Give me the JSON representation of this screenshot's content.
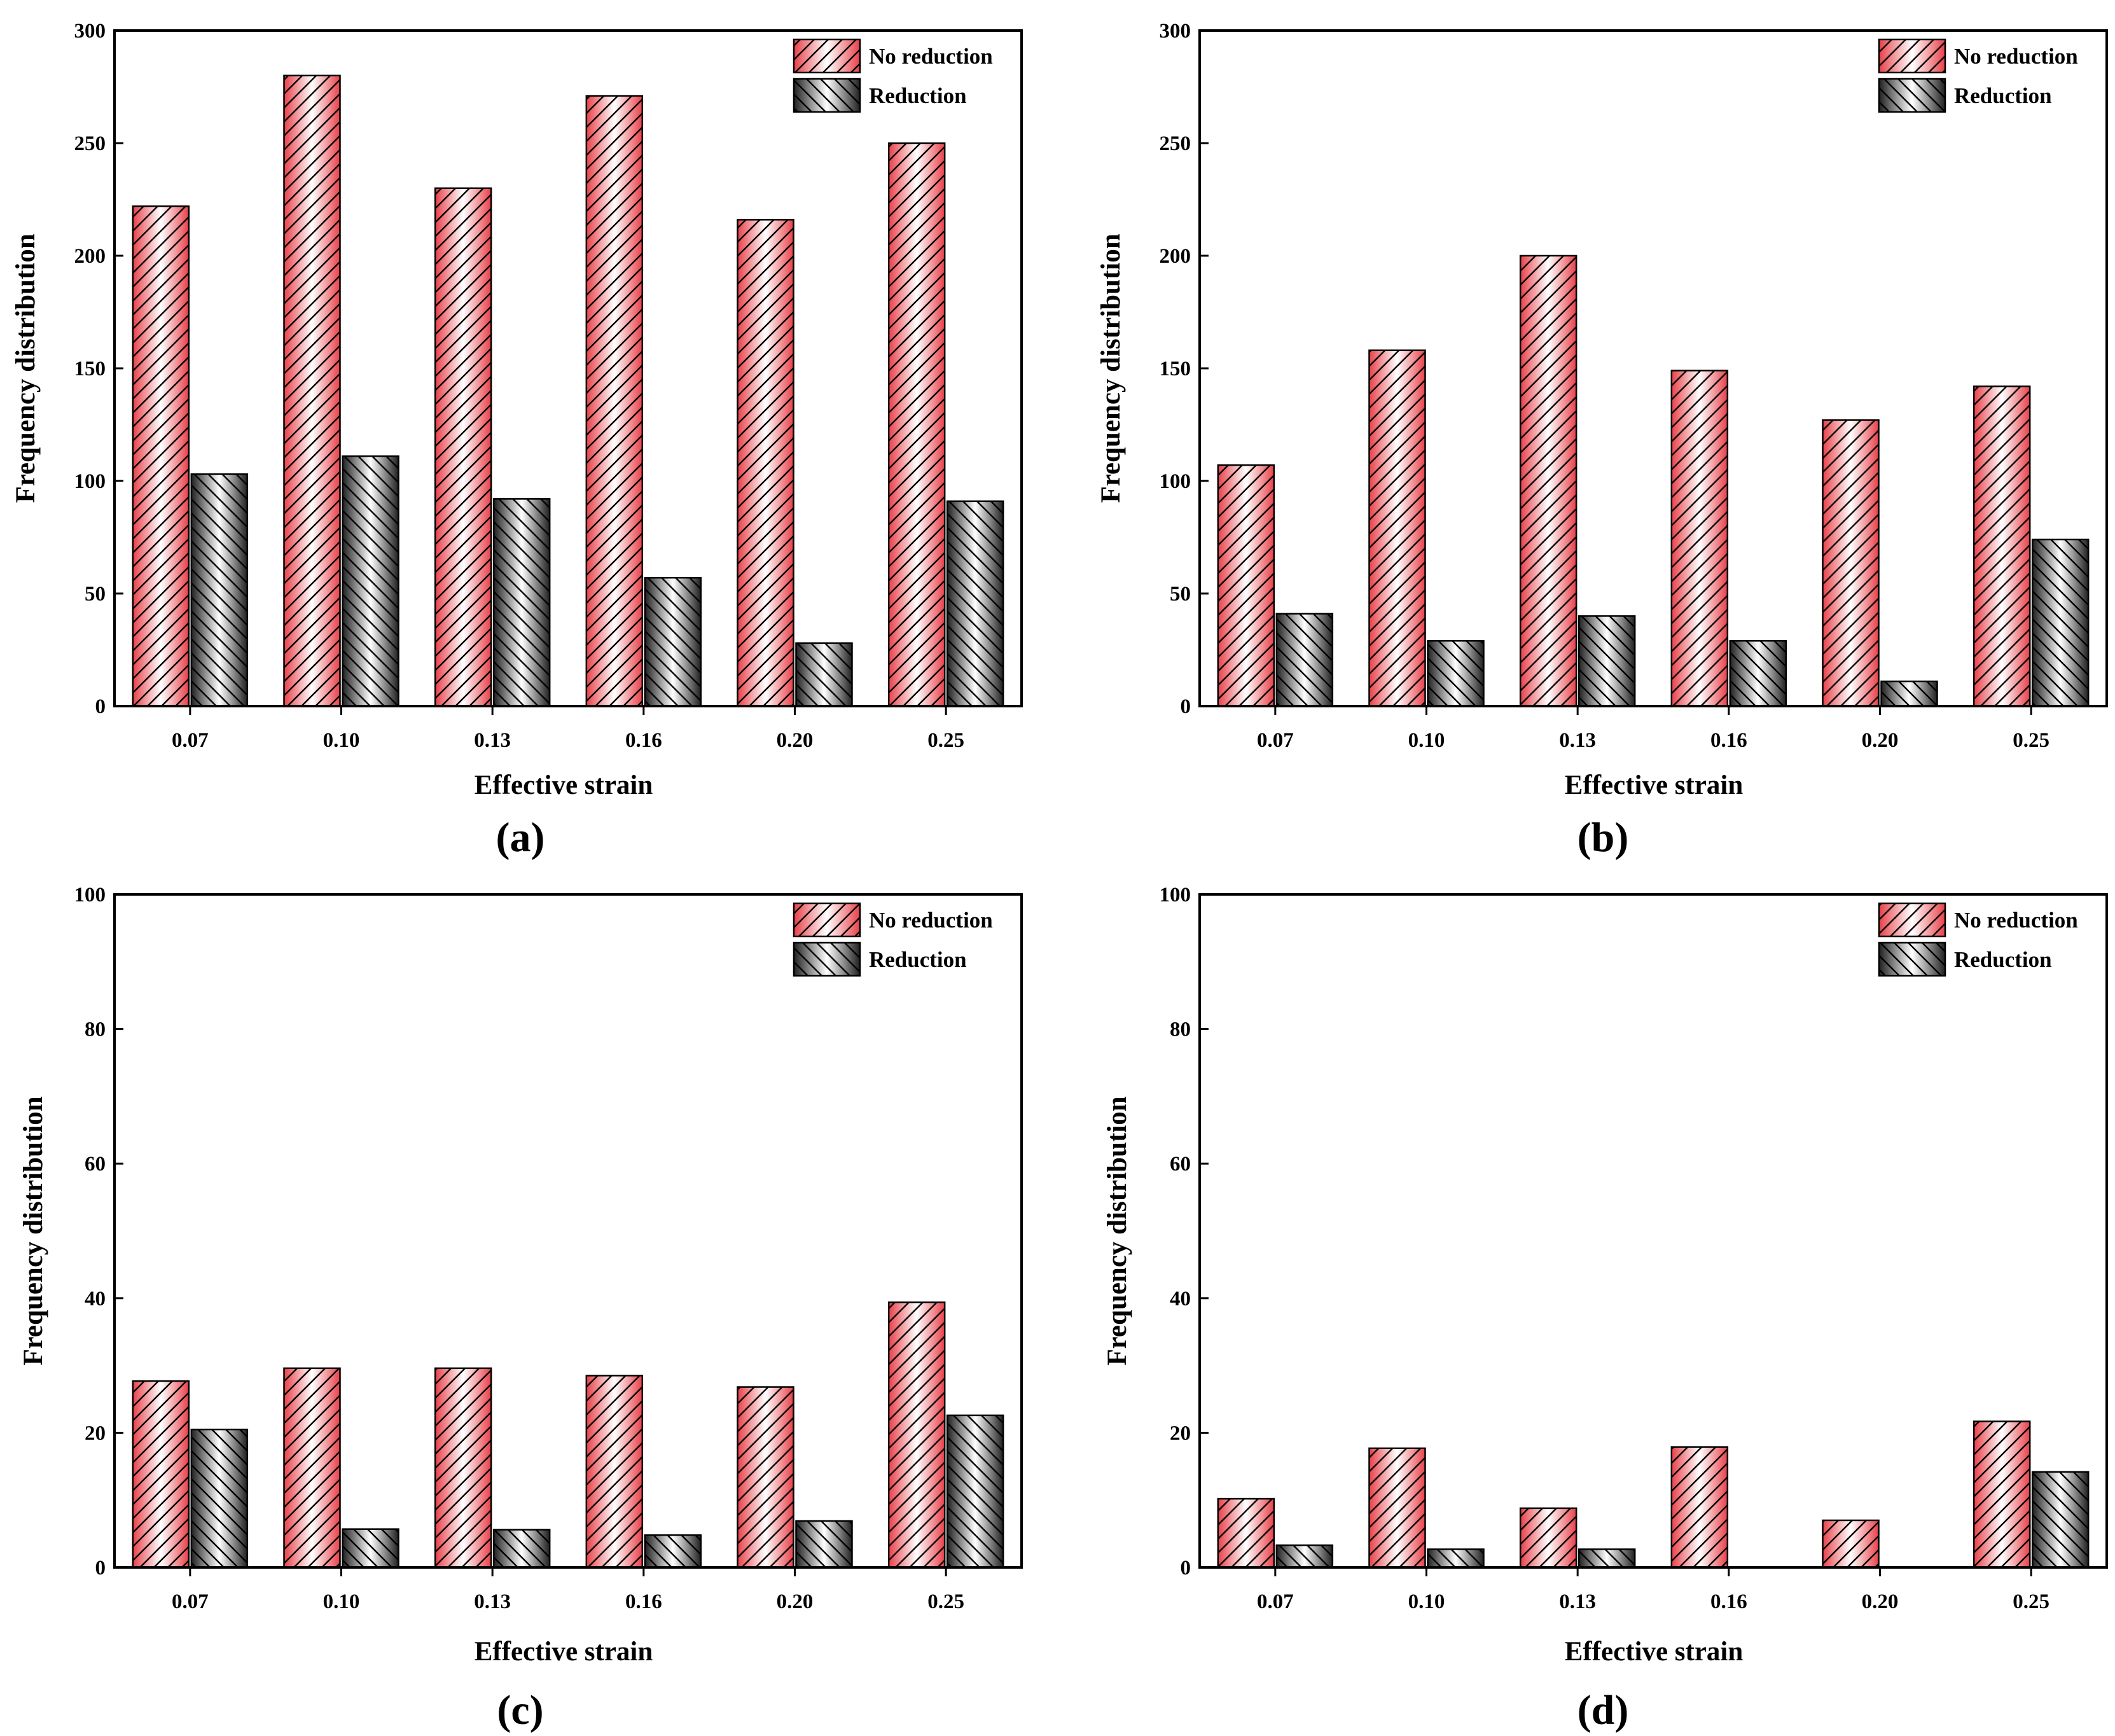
{
  "colors": {
    "no_reduction_fill": "#e84048",
    "no_reduction_light": "#ffffff",
    "reduction_fill": "#1f1f1f",
    "reduction_light": "#ffffff",
    "axis": "#000000"
  },
  "chart_data": [
    {
      "type": "bar",
      "panel_label": "(a)",
      "xlabel": "Effective strain",
      "ylabel": "Frequency distribution",
      "categories": [
        "0.07",
        "0.10",
        "0.13",
        "0.16",
        "0.20",
        "0.25"
      ],
      "ylim": [
        0,
        300
      ],
      "yticks": [
        "0",
        "50",
        "100",
        "150",
        "200",
        "250",
        "300"
      ],
      "legend_position": "top-right",
      "series": [
        {
          "name": "No reduction",
          "values": [
            222,
            280,
            230,
            271,
            216,
            250
          ]
        },
        {
          "name": "Reduction",
          "values": [
            103,
            111,
            92,
            57,
            28,
            91
          ]
        }
      ]
    },
    {
      "type": "bar",
      "panel_label": "(b)",
      "xlabel": "Effective strain",
      "ylabel": "Frequency distribution",
      "categories": [
        "0.07",
        "0.10",
        "0.13",
        "0.16",
        "0.20",
        "0.25"
      ],
      "ylim": [
        0,
        300
      ],
      "yticks": [
        "0",
        "50",
        "100",
        "150",
        "200",
        "250",
        "300"
      ],
      "legend_position": "top-right",
      "series": [
        {
          "name": "No reduction",
          "values": [
            107,
            158,
            200,
            149,
            127,
            142
          ]
        },
        {
          "name": "Reduction",
          "values": [
            41,
            29,
            40,
            29,
            11,
            74
          ]
        }
      ]
    },
    {
      "type": "bar",
      "panel_label": "(c)",
      "xlabel": "Effective strain",
      "ylabel": "Frequency distribution",
      "categories": [
        "0.07",
        "0.10",
        "0.13",
        "0.16",
        "0.20",
        "0.25"
      ],
      "ylim": [
        0,
        100
      ],
      "yticks": [
        "0",
        "20",
        "40",
        "60",
        "80",
        "100"
      ],
      "legend_position": "top-right",
      "series": [
        {
          "name": "No reduction",
          "values": [
            27.7,
            29.6,
            29.6,
            28.5,
            26.8,
            39.4
          ]
        },
        {
          "name": "Reduction",
          "values": [
            20.5,
            5.7,
            5.6,
            4.8,
            6.9,
            22.6
          ]
        }
      ]
    },
    {
      "type": "bar",
      "panel_label": "(d)",
      "xlabel": "Effective strain",
      "ylabel": "Frequency distribution",
      "categories": [
        "0.07",
        "0.10",
        "0.13",
        "0.16",
        "0.20",
        "0.25"
      ],
      "ylim": [
        0,
        100
      ],
      "yticks": [
        "0",
        "20",
        "40",
        "60",
        "80",
        "100"
      ],
      "legend_position": "top-right",
      "series": [
        {
          "name": "No reduction",
          "values": [
            10.2,
            17.7,
            8.8,
            17.9,
            7.0,
            21.7
          ]
        },
        {
          "name": "Reduction",
          "values": [
            3.3,
            2.7,
            2.7,
            0,
            0,
            14.2
          ]
        }
      ]
    }
  ]
}
